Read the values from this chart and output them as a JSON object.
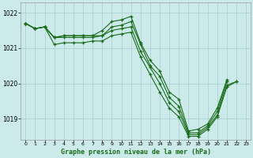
{
  "title": "Graphe pression niveau de la mer (hPa)",
  "bg_color": "#cceaea",
  "grid_color": "#aad4d4",
  "line_color": "#1a6b1a",
  "xlim": [
    -0.5,
    23.5
  ],
  "ylim": [
    1018.4,
    1022.3
  ],
  "yticks": [
    1019,
    1020,
    1021,
    1022
  ],
  "xticks": [
    0,
    1,
    2,
    3,
    4,
    5,
    6,
    7,
    8,
    9,
    10,
    11,
    12,
    13,
    14,
    15,
    16,
    17,
    18,
    19,
    20,
    21,
    22,
    23
  ],
  "series": [
    [
      1021.7,
      1021.55,
      1021.6,
      1021.3,
      1021.35,
      1021.35,
      1021.35,
      1021.35,
      1021.5,
      1021.75,
      1021.8,
      1021.9,
      1021.15,
      1020.65,
      1020.35,
      1019.75,
      1019.55,
      1018.65,
      1018.7,
      1018.85,
      1019.3,
      1020.1,
      null,
      null
    ],
    [
      1021.7,
      1021.55,
      1021.6,
      1021.3,
      1021.35,
      1021.35,
      1021.35,
      1021.35,
      1021.35,
      1021.6,
      1021.65,
      1021.75,
      1021.1,
      1020.5,
      1020.2,
      1019.6,
      1019.35,
      1018.6,
      1018.6,
      1018.8,
      1019.2,
      1020.05,
      null,
      null
    ],
    [
      1021.7,
      1021.55,
      1021.6,
      1021.3,
      1021.3,
      1021.3,
      1021.3,
      1021.3,
      1021.35,
      1021.5,
      1021.55,
      1021.6,
      1020.9,
      1020.45,
      1020.0,
      1019.45,
      1019.2,
      1018.55,
      1018.55,
      1018.75,
      1019.1,
      1019.95,
      1020.05,
      null
    ],
    [
      1021.7,
      1021.55,
      1021.6,
      1021.1,
      1021.15,
      1021.15,
      1021.15,
      1021.2,
      1021.2,
      1021.35,
      1021.4,
      1021.45,
      1020.75,
      1020.25,
      1019.75,
      1019.3,
      1019.05,
      1018.5,
      1018.5,
      1018.7,
      1019.05,
      1019.9,
      1020.05,
      null
    ]
  ]
}
